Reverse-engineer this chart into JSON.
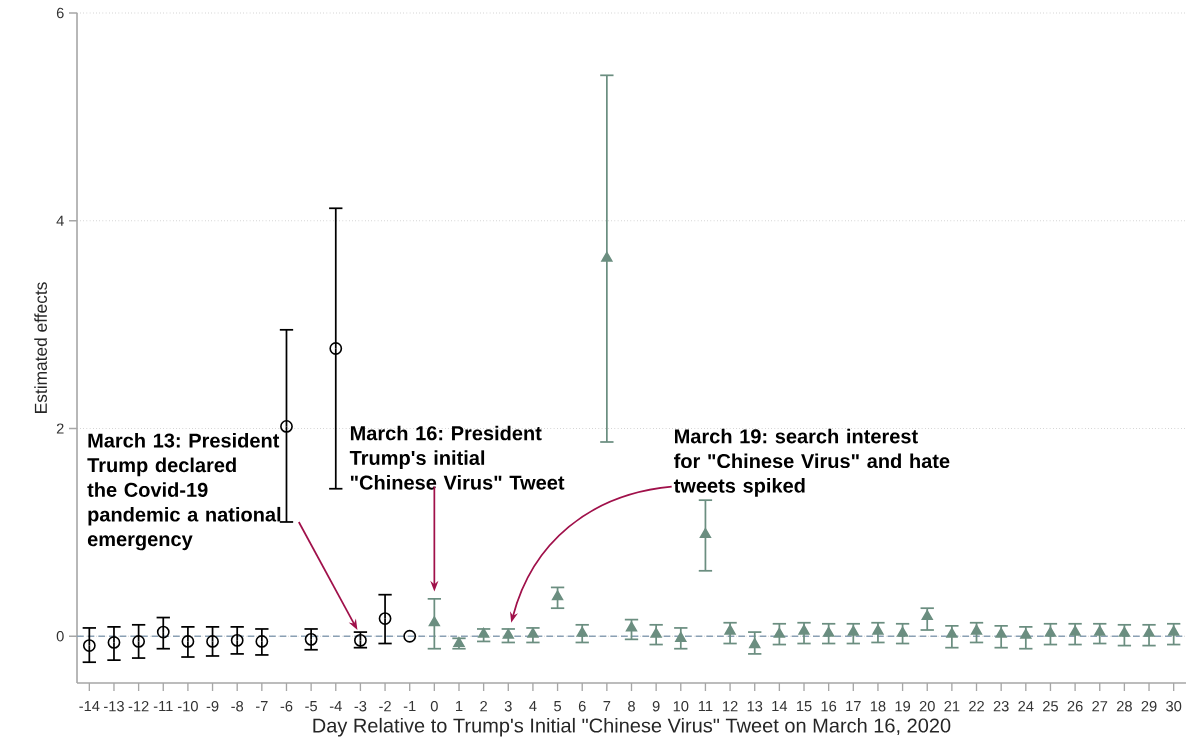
{
  "chart_data": {
    "type": "scatter",
    "xlabel": "Day Relative to Trump's Initial \"Chinese Virus\" Tweet on March 16, 2020",
    "ylabel": "Estimated effects",
    "xlim": [
      -14.5,
      30.5
    ],
    "ylim": [
      -0.45,
      6
    ],
    "xticks": [
      -14,
      -13,
      -12,
      -11,
      -10,
      -9,
      -8,
      -7,
      -6,
      -5,
      -4,
      -3,
      -2,
      -1,
      0,
      1,
      2,
      3,
      4,
      5,
      6,
      7,
      8,
      9,
      10,
      11,
      12,
      13,
      14,
      15,
      16,
      17,
      18,
      19,
      20,
      21,
      22,
      23,
      24,
      25,
      26,
      27,
      28,
      29,
      30
    ],
    "yticks": [
      0,
      2,
      4,
      6
    ],
    "grid": "y",
    "series": [
      {
        "color": "#000000",
        "marker": "circle",
        "x": [
          -14,
          -13,
          -12,
          -11,
          -10,
          -9,
          -8,
          -7,
          -6,
          -5,
          -4,
          -3,
          -2,
          -1
        ],
        "values": [
          -0.09,
          -0.06,
          -0.05,
          0.04,
          -0.05,
          -0.05,
          -0.04,
          -0.05,
          2.02,
          -0.03,
          2.77,
          -0.04,
          0.17,
          0
        ],
        "errors": [
          [
            -0.25,
            0.08
          ],
          [
            -0.23,
            0.09
          ],
          [
            -0.21,
            0.11
          ],
          [
            -0.12,
            0.18
          ],
          [
            -0.2,
            0.09
          ],
          [
            -0.19,
            0.09
          ],
          [
            -0.17,
            0.09
          ],
          [
            -0.18,
            0.07
          ],
          [
            1.1,
            2.95
          ],
          [
            -0.13,
            0.07
          ],
          [
            1.42,
            4.12
          ],
          [
            -0.11,
            0.04
          ],
          [
            -0.07,
            0.4
          ],
          null
        ]
      },
      {
        "color": "#6b8e80",
        "marker": "triangle",
        "x": [
          0,
          1,
          2,
          3,
          4,
          5,
          6,
          7,
          8,
          9,
          10,
          11,
          12,
          13,
          14,
          15,
          16,
          17,
          18,
          19,
          20,
          21,
          22,
          23,
          24,
          25,
          26,
          27,
          28,
          29,
          30
        ],
        "values": [
          0.13,
          -0.07,
          0.02,
          0.01,
          0.02,
          0.38,
          0.03,
          3.64,
          0.08,
          0.02,
          -0.02,
          0.98,
          0.05,
          -0.08,
          0.02,
          0.05,
          0.03,
          0.04,
          0.05,
          0.03,
          0.19,
          0.02,
          0.05,
          0.02,
          0.01,
          0.03,
          0.04,
          0.04,
          0.03,
          0.03,
          0.04
        ],
        "errors": [
          [
            -0.12,
            0.36
          ],
          [
            -0.12,
            -0.02
          ],
          [
            -0.05,
            0.07
          ],
          [
            -0.06,
            0.07
          ],
          [
            -0.06,
            0.08
          ],
          [
            0.27,
            0.47
          ],
          [
            -0.06,
            0.11
          ],
          [
            1.87,
            5.4
          ],
          [
            -0.03,
            0.16
          ],
          [
            -0.08,
            0.11
          ],
          [
            -0.12,
            0.08
          ],
          [
            0.63,
            1.31
          ],
          [
            -0.07,
            0.13
          ],
          [
            -0.17,
            0.04
          ],
          [
            -0.08,
            0.12
          ],
          [
            -0.07,
            0.13
          ],
          [
            -0.07,
            0.12
          ],
          [
            -0.07,
            0.12
          ],
          [
            -0.06,
            0.13
          ],
          [
            -0.07,
            0.12
          ],
          [
            0.06,
            0.27
          ],
          [
            -0.11,
            0.1
          ],
          [
            -0.06,
            0.13
          ],
          [
            -0.11,
            0.1
          ],
          [
            -0.12,
            0.09
          ],
          [
            -0.08,
            0.12
          ],
          [
            -0.08,
            0.12
          ],
          [
            -0.07,
            0.12
          ],
          [
            -0.09,
            0.11
          ],
          [
            -0.09,
            0.11
          ],
          [
            -0.08,
            0.12
          ]
        ]
      }
    ],
    "ref_lines": [
      {
        "axis": "y",
        "value": 0,
        "color": "#8aa0b4",
        "line_style": "dashed"
      }
    ],
    "annotations": [
      "March 13: President Trump declared the Covid-19 pandemic a national emergency",
      "March 16: President Trump's initial \"Chinese Virus\" Tweet",
      "March 19: search interest for \"Chinese Virus\" and hate tweets spiked"
    ]
  }
}
